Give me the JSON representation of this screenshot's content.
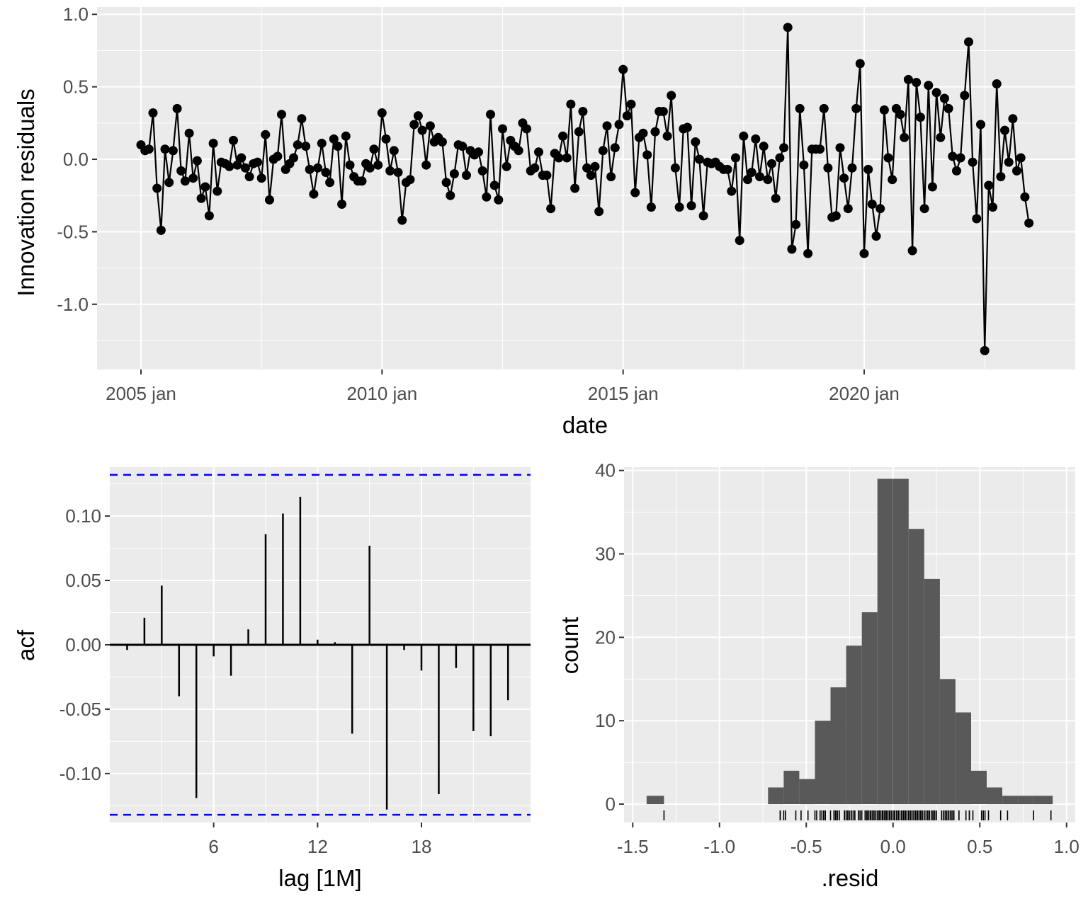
{
  "chart_data": [
    {
      "type": "line",
      "name": "residuals-time-series",
      "xlabel": "date",
      "ylabel": "Innovation residuals",
      "x_tick_labels": [
        "2005 jan",
        "2010 jan",
        "2015 jan",
        "2020 jan"
      ],
      "x_tick_years": [
        2005,
        2010,
        2015,
        2020
      ],
      "y_tick_labels": [
        "1.0",
        "0.5",
        "0.0",
        "-0.5",
        "-1.0"
      ],
      "y_ticks": [
        1.0,
        0.5,
        0.0,
        -0.5,
        -1.0
      ],
      "ylim": [
        -1.45,
        1.05
      ],
      "x_start": "2005 jan",
      "frequency": "monthly",
      "values": [
        0.1,
        0.06,
        0.07,
        0.32,
        -0.2,
        -0.49,
        0.07,
        -0.16,
        0.06,
        0.35,
        -0.08,
        -0.15,
        0.18,
        -0.13,
        -0.01,
        -0.27,
        -0.19,
        -0.39,
        0.11,
        -0.22,
        -0.02,
        -0.03,
        -0.05,
        0.13,
        -0.04,
        0.01,
        -0.06,
        -0.12,
        -0.03,
        -0.02,
        -0.13,
        0.17,
        -0.28,
        0.0,
        0.02,
        0.31,
        -0.07,
        -0.03,
        0.01,
        0.1,
        0.28,
        0.09,
        -0.07,
        -0.24,
        -0.06,
        0.11,
        -0.09,
        -0.16,
        0.14,
        0.09,
        -0.31,
        0.16,
        -0.04,
        -0.12,
        -0.15,
        -0.15,
        -0.03,
        -0.06,
        0.07,
        -0.04,
        0.32,
        0.14,
        -0.08,
        0.06,
        -0.09,
        -0.42,
        -0.16,
        -0.14,
        0.24,
        0.3,
        0.2,
        -0.04,
        0.23,
        0.12,
        0.15,
        0.12,
        -0.16,
        -0.25,
        -0.1,
        0.1,
        0.09,
        -0.11,
        0.06,
        0.03,
        0.05,
        -0.08,
        -0.26,
        0.31,
        -0.18,
        -0.28,
        0.21,
        -0.05,
        0.13,
        0.09,
        0.06,
        0.25,
        0.21,
        -0.08,
        -0.06,
        0.05,
        -0.11,
        -0.11,
        -0.34,
        0.04,
        0.01,
        0.16,
        0.01,
        0.38,
        -0.2,
        0.19,
        0.33,
        -0.06,
        -0.11,
        -0.05,
        -0.36,
        0.06,
        0.23,
        -0.12,
        0.08,
        0.24,
        0.62,
        0.3,
        0.38,
        -0.23,
        0.15,
        0.18,
        0.03,
        -0.33,
        0.19,
        0.33,
        0.33,
        0.16,
        0.44,
        -0.06,
        -0.33,
        0.21,
        0.22,
        -0.32,
        0.12,
        0.0,
        -0.39,
        -0.02,
        -0.03,
        -0.02,
        -0.05,
        -0.07,
        -0.07,
        -0.22,
        0.01,
        -0.56,
        0.16,
        -0.14,
        -0.09,
        0.14,
        -0.12,
        0.09,
        -0.14,
        -0.03,
        -0.27,
        0.01,
        0.08,
        0.91,
        -0.62,
        -0.45,
        0.35,
        -0.04,
        -0.65,
        0.07,
        0.07,
        0.07,
        0.35,
        -0.06,
        -0.4,
        -0.39,
        0.08,
        -0.13,
        -0.34,
        -0.06,
        0.35,
        0.66,
        -0.65,
        -0.07,
        -0.31,
        -0.53,
        -0.34,
        0.34,
        0.01,
        -0.14,
        0.35,
        0.31,
        0.15,
        0.55,
        -0.63,
        0.53,
        0.29,
        -0.34,
        0.51,
        -0.19,
        0.46,
        0.15,
        0.42,
        0.35,
        0.02,
        -0.08,
        0.01,
        0.44,
        0.81,
        -0.02,
        -0.41,
        0.24,
        -1.32,
        -0.18,
        -0.33,
        0.52,
        -0.12,
        0.2,
        -0.02,
        0.28,
        -0.08,
        0.01,
        -0.26,
        -0.44
      ]
    },
    {
      "type": "bar",
      "name": "acf-plot",
      "xlabel": "lag [1M]",
      "ylabel": "acf",
      "lags": [
        1,
        2,
        3,
        4,
        5,
        6,
        7,
        8,
        9,
        10,
        11,
        12,
        13,
        14,
        15,
        16,
        17,
        18,
        19,
        20,
        21,
        22,
        23,
        24
      ],
      "values": [
        -0.004,
        0.021,
        0.046,
        -0.04,
        -0.119,
        -0.009,
        -0.024,
        0.012,
        0.086,
        0.102,
        0.115,
        0.004,
        0.002,
        -0.069,
        0.077,
        -0.128,
        -0.004,
        -0.02,
        -0.116,
        -0.018,
        -0.067,
        -0.071,
        -0.043,
        0.0
      ],
      "x_tick_labels": [
        "6",
        "12",
        "18"
      ],
      "x_ticks": [
        6,
        12,
        18
      ],
      "y_tick_labels": [
        "0.10",
        "0.05",
        "0.00",
        "-0.05",
        "-0.10"
      ],
      "y_ticks": [
        0.1,
        0.05,
        0.0,
        -0.05,
        -0.1
      ],
      "ylim": [
        -0.138,
        0.138
      ],
      "xlim": [
        0,
        24.3
      ],
      "confidence_bound": 0.132,
      "bound_color": "#0000ff"
    },
    {
      "type": "bar",
      "name": "residual-histogram",
      "xlabel": ".resid",
      "ylabel": "count",
      "bins": [
        {
          "x0": -1.42,
          "x1": -1.32,
          "count": 1
        },
        {
          "x0": -0.72,
          "x1": -0.63,
          "count": 2
        },
        {
          "x0": -0.63,
          "x1": -0.54,
          "count": 4
        },
        {
          "x0": -0.54,
          "x1": -0.45,
          "count": 3
        },
        {
          "x0": -0.45,
          "x1": -0.36,
          "count": 10
        },
        {
          "x0": -0.36,
          "x1": -0.27,
          "count": 14
        },
        {
          "x0": -0.27,
          "x1": -0.18,
          "count": 19
        },
        {
          "x0": -0.18,
          "x1": -0.09,
          "count": 23
        },
        {
          "x0": -0.09,
          "x1": 0.0,
          "count": 39
        },
        {
          "x0": 0.0,
          "x1": 0.09,
          "count": 39
        },
        {
          "x0": 0.09,
          "x1": 0.18,
          "count": 33
        },
        {
          "x0": 0.18,
          "x1": 0.27,
          "count": 27
        },
        {
          "x0": 0.27,
          "x1": 0.36,
          "count": 15
        },
        {
          "x0": 0.36,
          "x1": 0.45,
          "count": 11
        },
        {
          "x0": 0.45,
          "x1": 0.54,
          "count": 4
        },
        {
          "x0": 0.54,
          "x1": 0.63,
          "count": 2
        },
        {
          "x0": 0.63,
          "x1": 0.72,
          "count": 1
        },
        {
          "x0": 0.72,
          "x1": 0.81,
          "count": 1
        },
        {
          "x0": 0.81,
          "x1": 0.92,
          "count": 1
        }
      ],
      "x_tick_labels": [
        "-1.5",
        "-1.0",
        "-0.5",
        "0.0",
        "0.5",
        "1.0"
      ],
      "x_ticks": [
        -1.5,
        -1.0,
        -0.5,
        0.0,
        0.5,
        1.0
      ],
      "y_tick_labels": [
        "40",
        "30",
        "20",
        "10",
        "0"
      ],
      "y_ticks": [
        40,
        30,
        20,
        10,
        0
      ],
      "xlim": [
        -1.55,
        1.05
      ],
      "ylim": [
        -2.2,
        40.4
      ],
      "bar_color": "#595959",
      "rug": true
    }
  ]
}
